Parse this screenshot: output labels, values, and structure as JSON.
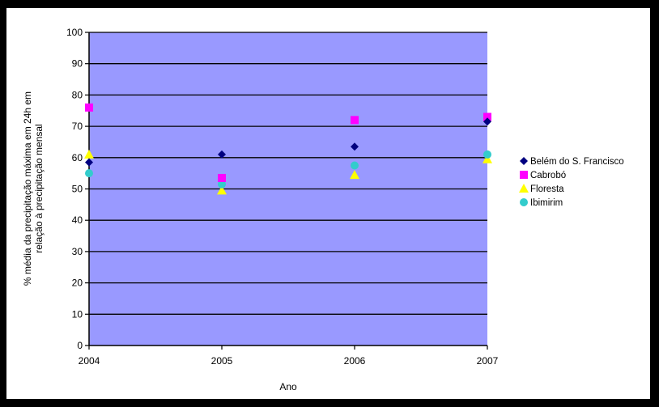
{
  "chart_data": {
    "type": "scatter",
    "title": "",
    "xlabel": "Ano",
    "ylabel_lines": [
      "% média da precipitação máxima em 24h em",
      "relação à precipitação mensal"
    ],
    "x_categories": [
      "2004",
      "2005",
      "2006",
      "2007"
    ],
    "ylim": [
      0,
      100
    ],
    "y_ticks": [
      0,
      10,
      20,
      30,
      40,
      50,
      60,
      70,
      80,
      90,
      100
    ],
    "grid": true,
    "legend_position": "right",
    "series": [
      {
        "name": "Belém do S. Francisco",
        "marker": "diamond",
        "color": "#000080",
        "values": [
          58.5,
          61,
          63.5,
          71.5
        ]
      },
      {
        "name": "Cabrobó",
        "marker": "square",
        "color": "#ff00ff",
        "values": [
          76,
          53.5,
          72,
          73
        ]
      },
      {
        "name": "Floresta",
        "marker": "triangle",
        "color": "#ffff00",
        "values": [
          61,
          49.5,
          54.5,
          59.5
        ]
      },
      {
        "name": "Ibimirim",
        "marker": "circle",
        "color": "#33cccc",
        "values": [
          55,
          51.5,
          57.5,
          61
        ]
      }
    ],
    "plot_background": "#9999ff"
  }
}
